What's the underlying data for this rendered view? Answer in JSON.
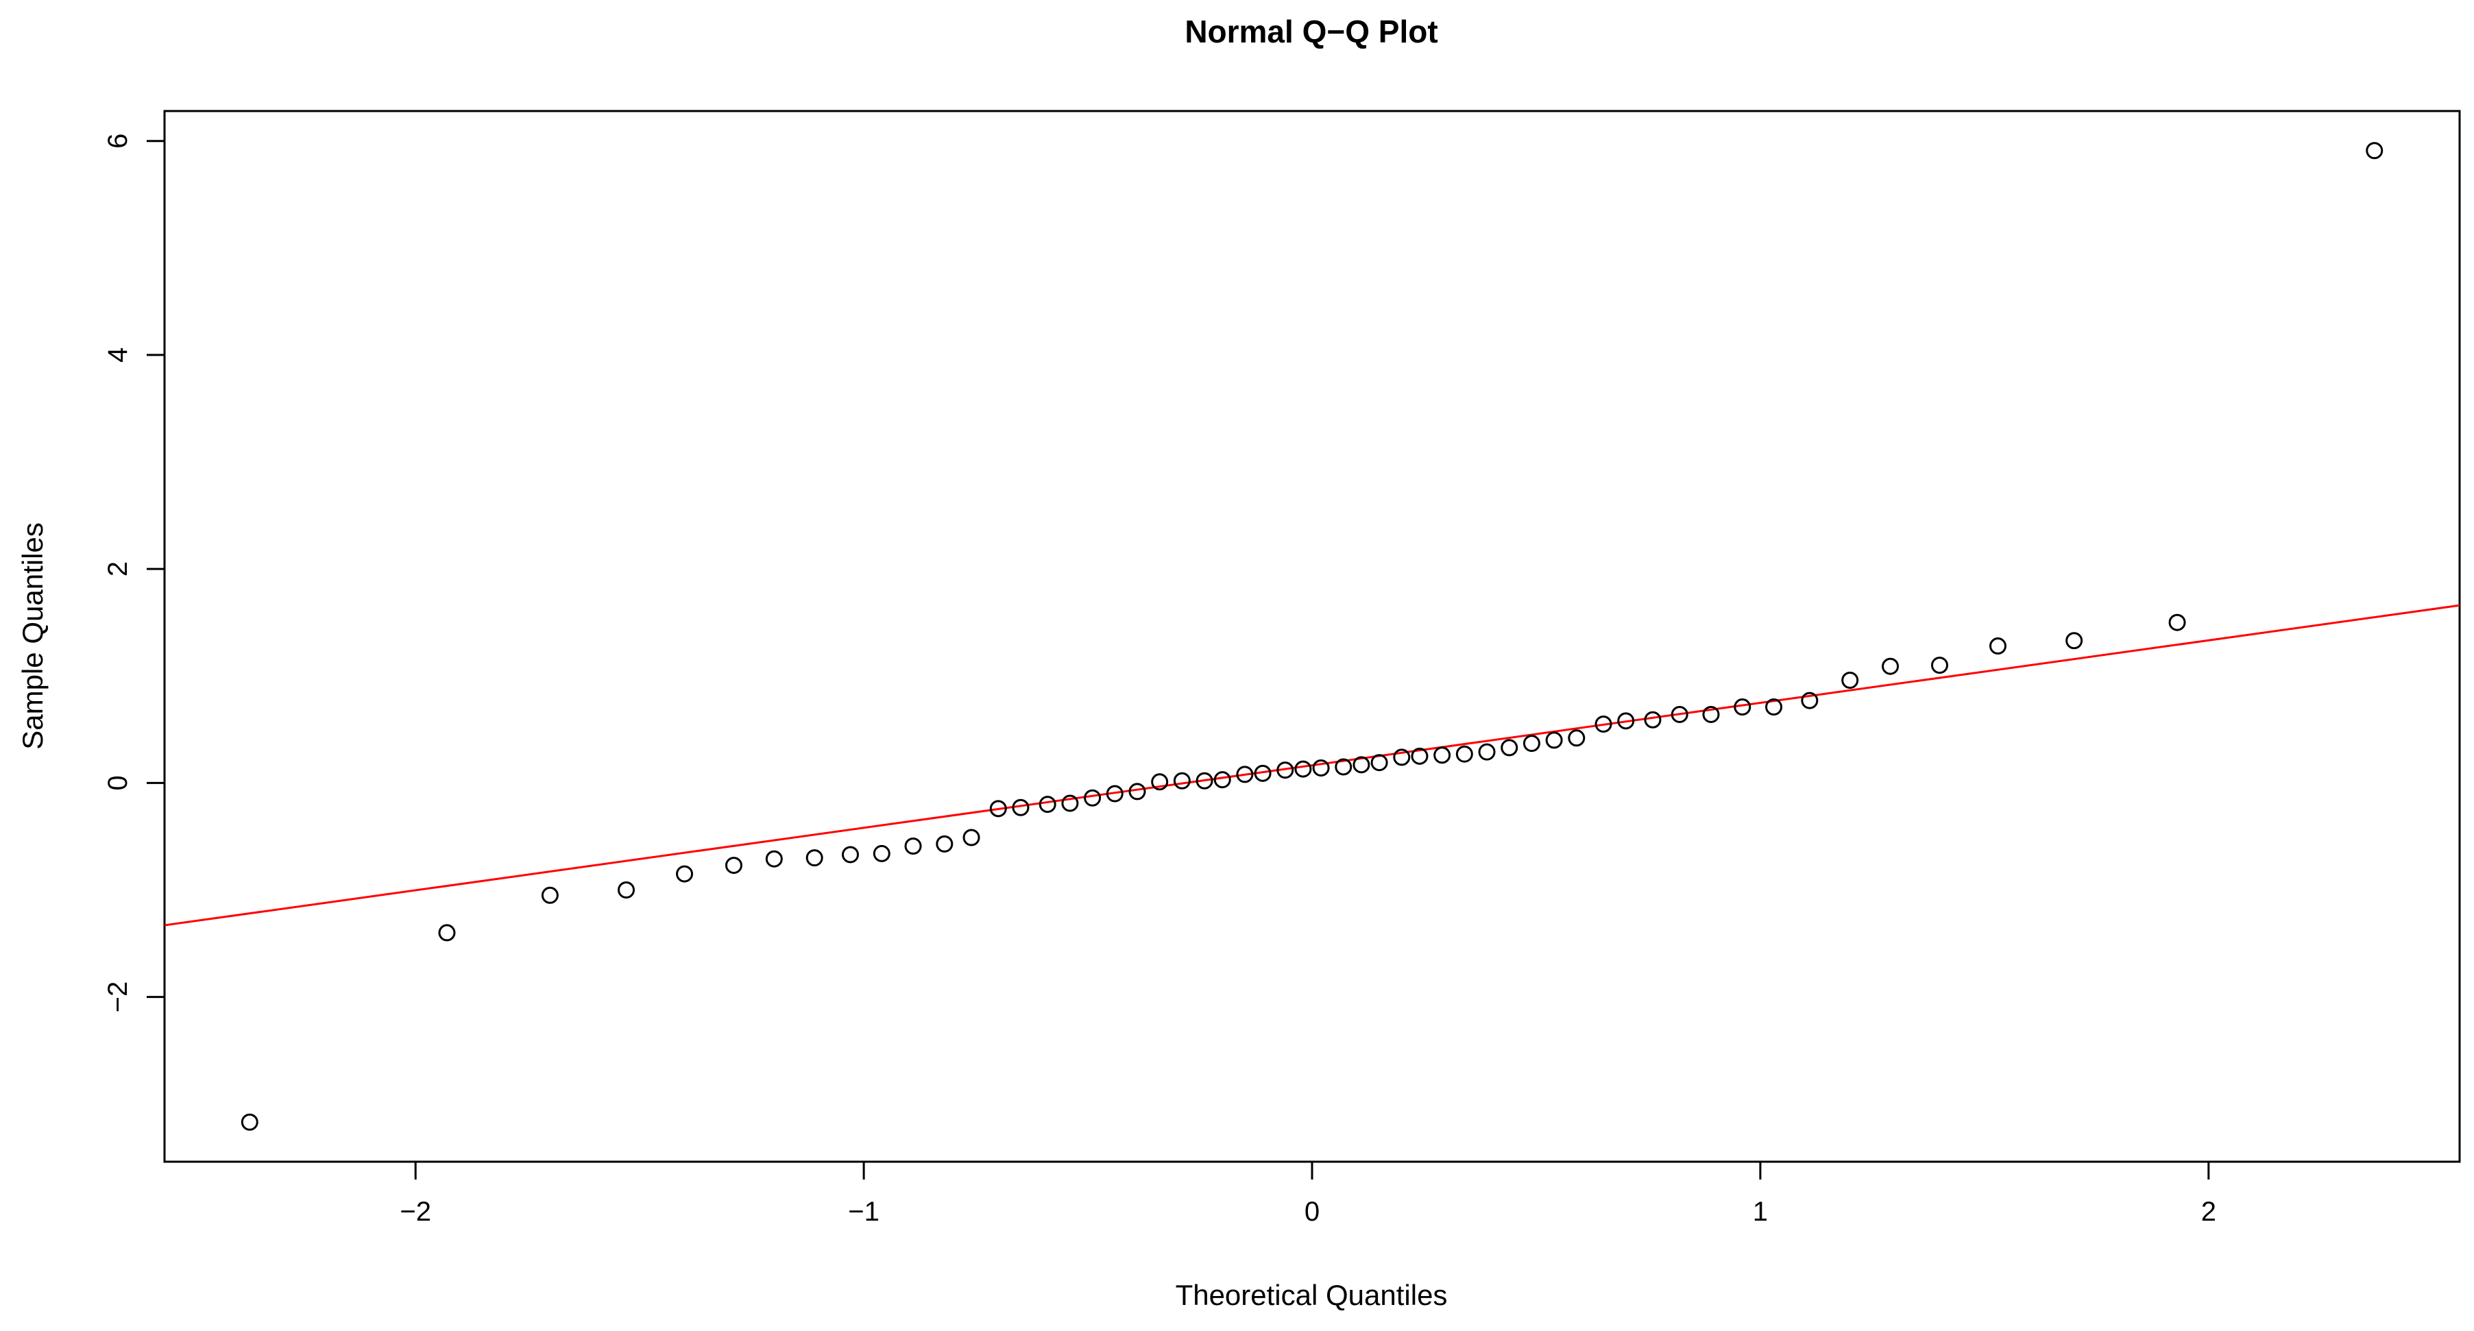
{
  "chart_data": {
    "type": "scatter",
    "title": "Normal Q−Q Plot",
    "xlabel": "Theoretical Quantiles",
    "ylabel": "Sample Quantiles",
    "xlim": [
      -2.56,
      2.56
    ],
    "ylim": [
      -3.54,
      6.28
    ],
    "x_ticks": [
      -2,
      -1,
      0,
      1,
      2
    ],
    "x_tick_labels": [
      "−2",
      "−1",
      "0",
      "1",
      "2"
    ],
    "y_ticks": [
      -2,
      0,
      2,
      4,
      6
    ],
    "y_tick_labels": [
      "−2",
      "0",
      "2",
      "4",
      "6"
    ],
    "grid": false,
    "point_style": "open-circle",
    "points": [
      {
        "x": -2.37,
        "y": -3.17
      },
      {
        "x": -1.93,
        "y": -1.4
      },
      {
        "x": -1.7,
        "y": -1.05
      },
      {
        "x": -1.53,
        "y": -1.0
      },
      {
        "x": -1.4,
        "y": -0.85
      },
      {
        "x": -1.29,
        "y": -0.77
      },
      {
        "x": -1.2,
        "y": -0.71
      },
      {
        "x": -1.11,
        "y": -0.7
      },
      {
        "x": -1.03,
        "y": -0.67
      },
      {
        "x": -0.96,
        "y": -0.66
      },
      {
        "x": -0.89,
        "y": -0.59
      },
      {
        "x": -0.82,
        "y": -0.57
      },
      {
        "x": -0.76,
        "y": -0.51
      },
      {
        "x": -0.7,
        "y": -0.24
      },
      {
        "x": -0.65,
        "y": -0.23
      },
      {
        "x": -0.59,
        "y": -0.2
      },
      {
        "x": -0.54,
        "y": -0.19
      },
      {
        "x": -0.49,
        "y": -0.14
      },
      {
        "x": -0.44,
        "y": -0.1
      },
      {
        "x": -0.39,
        "y": -0.08
      },
      {
        "x": -0.34,
        "y": 0.01
      },
      {
        "x": -0.29,
        "y": 0.02
      },
      {
        "x": -0.24,
        "y": 0.02
      },
      {
        "x": -0.2,
        "y": 0.03
      },
      {
        "x": -0.15,
        "y": 0.08
      },
      {
        "x": -0.11,
        "y": 0.09
      },
      {
        "x": -0.06,
        "y": 0.12
      },
      {
        "x": -0.02,
        "y": 0.13
      },
      {
        "x": 0.02,
        "y": 0.14
      },
      {
        "x": 0.07,
        "y": 0.15
      },
      {
        "x": 0.11,
        "y": 0.17
      },
      {
        "x": 0.15,
        "y": 0.19
      },
      {
        "x": 0.2,
        "y": 0.24
      },
      {
        "x": 0.24,
        "y": 0.25
      },
      {
        "x": 0.29,
        "y": 0.26
      },
      {
        "x": 0.34,
        "y": 0.27
      },
      {
        "x": 0.39,
        "y": 0.29
      },
      {
        "x": 0.44,
        "y": 0.33
      },
      {
        "x": 0.49,
        "y": 0.37
      },
      {
        "x": 0.54,
        "y": 0.4
      },
      {
        "x": 0.59,
        "y": 0.42
      },
      {
        "x": 0.65,
        "y": 0.55
      },
      {
        "x": 0.7,
        "y": 0.58
      },
      {
        "x": 0.76,
        "y": 0.59
      },
      {
        "x": 0.82,
        "y": 0.64
      },
      {
        "x": 0.89,
        "y": 0.64
      },
      {
        "x": 0.96,
        "y": 0.71
      },
      {
        "x": 1.03,
        "y": 0.71
      },
      {
        "x": 1.11,
        "y": 0.77
      },
      {
        "x": 1.2,
        "y": 0.96
      },
      {
        "x": 1.29,
        "y": 1.09
      },
      {
        "x": 1.4,
        "y": 1.1
      },
      {
        "x": 1.53,
        "y": 1.28
      },
      {
        "x": 1.7,
        "y": 1.33
      },
      {
        "x": 1.93,
        "y": 1.5
      },
      {
        "x": 2.37,
        "y": 5.91
      }
    ],
    "reference_line": {
      "color": "#ff0000",
      "from": {
        "x": -2.56,
        "y": -1.33
      },
      "to": {
        "x": 2.56,
        "y": 1.66
      }
    },
    "colors": {
      "points": "#000000",
      "line": "#ff0000",
      "background": "#ffffff"
    }
  }
}
